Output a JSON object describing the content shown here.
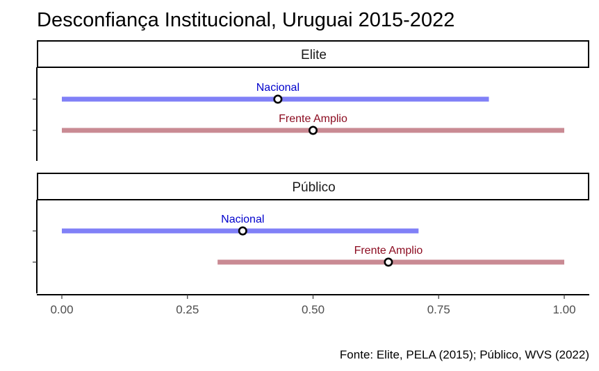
{
  "chart_data": {
    "type": "range_dot",
    "title": "Desconfiança Institucional, Uruguai 2015-2022",
    "caption": "Fonte: Elite, PELA (2015); Público, WVS (2022)",
    "xlim": [
      -0.05,
      1.05
    ],
    "x_ticks": [
      0,
      0.25,
      0.5,
      0.75,
      1.0
    ],
    "x_tick_labels": [
      "0.00",
      "0.25",
      "0.50",
      "0.75",
      "1.00"
    ],
    "grid": false,
    "legend": "none",
    "colors": {
      "Nacional": {
        "bar": "#8080f7",
        "label": "#0000cc"
      },
      "Frente Amplio": {
        "bar": "#c98a93",
        "label": "#8b0a1f"
      }
    },
    "facets": [
      {
        "name": "Elite",
        "series": [
          {
            "name": "Nacional",
            "start": 0.0,
            "end": 0.85,
            "point": 0.43
          },
          {
            "name": "Frente Amplio",
            "start": 0.0,
            "end": 1.0,
            "point": 0.5
          }
        ]
      },
      {
        "name": "Público",
        "series": [
          {
            "name": "Nacional",
            "start": 0.0,
            "end": 0.71,
            "point": 0.36
          },
          {
            "name": "Frente Amplio",
            "start": 0.31,
            "end": 1.0,
            "point": 0.65
          }
        ]
      }
    ]
  }
}
